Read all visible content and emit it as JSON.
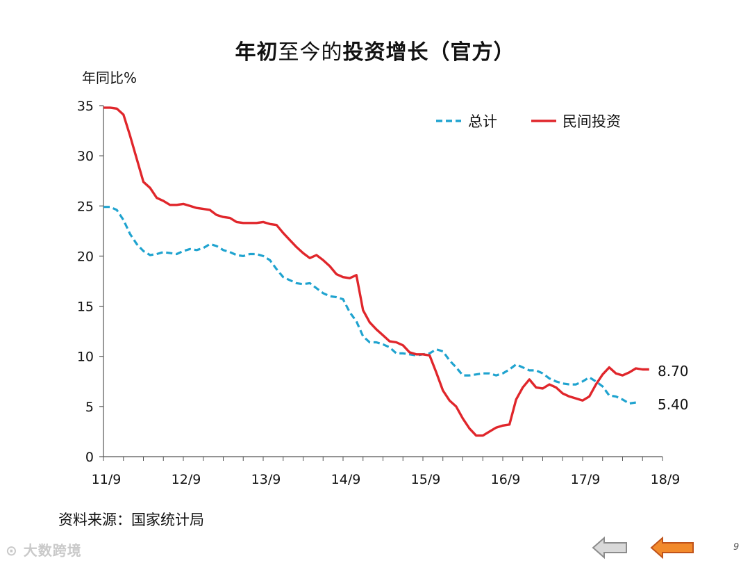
{
  "header": {
    "title_bold_1": "年初",
    "title_light": "至今",
    "title_light_2": "的",
    "title_bold_2": "投资增长（官方）"
  },
  "axis_unit": "年同比%",
  "source": "资料来源：国家统计局",
  "watermark": "大数跨境",
  "page_number": "9",
  "colors": {
    "total": "#1fa3cf",
    "private": "#e0262b",
    "axis": "#555555"
  },
  "icons": {
    "prev": "left-arrow-gray",
    "next": "left-arrow-orange"
  },
  "chart_data": {
    "type": "line",
    "ylim": [
      0,
      35
    ],
    "yticks": [
      0,
      5,
      10,
      15,
      20,
      25,
      30,
      35
    ],
    "x_tick_labels": [
      "11/9",
      "12/9",
      "13/9",
      "14/9",
      "15/9",
      "16/9",
      "17/9",
      "18/9"
    ],
    "x_range_months": [
      0,
      84
    ],
    "legend_position": "top-right",
    "series": [
      {
        "name": "总计",
        "style": "dashed",
        "end_label": "5.40",
        "points": [
          [
            0,
            24.9
          ],
          [
            1,
            24.9
          ],
          [
            2,
            24.6
          ],
          [
            3,
            23.6
          ],
          [
            4,
            22.2
          ],
          [
            5,
            21.2
          ],
          [
            6,
            20.5
          ],
          [
            7,
            20.1
          ],
          [
            8,
            20.2
          ],
          [
            9,
            20.4
          ],
          [
            10,
            20.3
          ],
          [
            11,
            20.2
          ],
          [
            12,
            20.5
          ],
          [
            13,
            20.7
          ],
          [
            14,
            20.6
          ],
          [
            15,
            20.8
          ],
          [
            16,
            21.2
          ],
          [
            17,
            21.0
          ],
          [
            18,
            20.6
          ],
          [
            19,
            20.4
          ],
          [
            20,
            20.1
          ],
          [
            21,
            20.0
          ],
          [
            22,
            20.2
          ],
          [
            23,
            20.2
          ],
          [
            24,
            20.0
          ],
          [
            25,
            19.6
          ],
          [
            26,
            18.7
          ],
          [
            27,
            17.9
          ],
          [
            28,
            17.6
          ],
          [
            29,
            17.3
          ],
          [
            30,
            17.2
          ],
          [
            31,
            17.3
          ],
          [
            32,
            16.8
          ],
          [
            33,
            16.3
          ],
          [
            34,
            16.0
          ],
          [
            35,
            15.9
          ],
          [
            36,
            15.7
          ],
          [
            37,
            14.4
          ],
          [
            38,
            13.5
          ],
          [
            39,
            12.0
          ],
          [
            40,
            11.4
          ],
          [
            41,
            11.4
          ],
          [
            42,
            11.2
          ],
          [
            43,
            10.9
          ],
          [
            44,
            10.3
          ],
          [
            45,
            10.3
          ],
          [
            46,
            10.2
          ],
          [
            47,
            10.1
          ],
          [
            48,
            10.2
          ],
          [
            49,
            10.3
          ],
          [
            50,
            10.7
          ],
          [
            51,
            10.5
          ],
          [
            52,
            9.6
          ],
          [
            53,
            8.9
          ],
          [
            54,
            8.1
          ],
          [
            55,
            8.1
          ],
          [
            56,
            8.2
          ],
          [
            57,
            8.3
          ],
          [
            58,
            8.3
          ],
          [
            59,
            8.1
          ],
          [
            60,
            8.3
          ],
          [
            61,
            8.7
          ],
          [
            62,
            9.2
          ],
          [
            63,
            8.9
          ],
          [
            64,
            8.6
          ],
          [
            65,
            8.6
          ],
          [
            66,
            8.3
          ],
          [
            67,
            7.8
          ],
          [
            68,
            7.5
          ],
          [
            69,
            7.3
          ],
          [
            70,
            7.2
          ],
          [
            71,
            7.2
          ],
          [
            72,
            7.5
          ],
          [
            73,
            7.9
          ],
          [
            74,
            7.5
          ],
          [
            75,
            7.0
          ],
          [
            76,
            6.1
          ],
          [
            77,
            6.0
          ],
          [
            78,
            5.7
          ],
          [
            79,
            5.3
          ],
          [
            80,
            5.4
          ]
        ]
      },
      {
        "name": "民间投资",
        "style": "solid",
        "end_label": "8.70",
        "points": [
          [
            0,
            34.8
          ],
          [
            1,
            34.8
          ],
          [
            2,
            34.7
          ],
          [
            3,
            34.1
          ],
          [
            4,
            32.0
          ],
          [
            5,
            29.7
          ],
          [
            6,
            27.4
          ],
          [
            7,
            26.8
          ],
          [
            8,
            25.8
          ],
          [
            9,
            25.5
          ],
          [
            10,
            25.1
          ],
          [
            11,
            25.1
          ],
          [
            12,
            25.2
          ],
          [
            13,
            25.0
          ],
          [
            14,
            24.8
          ],
          [
            15,
            24.7
          ],
          [
            16,
            24.6
          ],
          [
            17,
            24.1
          ],
          [
            18,
            23.9
          ],
          [
            19,
            23.8
          ],
          [
            20,
            23.4
          ],
          [
            21,
            23.3
          ],
          [
            22,
            23.3
          ],
          [
            23,
            23.3
          ],
          [
            24,
            23.4
          ],
          [
            25,
            23.2
          ],
          [
            26,
            23.1
          ],
          [
            27,
            22.3
          ],
          [
            28,
            21.6
          ],
          [
            29,
            20.9
          ],
          [
            30,
            20.3
          ],
          [
            31,
            19.8
          ],
          [
            32,
            20.1
          ],
          [
            33,
            19.6
          ],
          [
            34,
            19.0
          ],
          [
            35,
            18.2
          ],
          [
            36,
            17.9
          ],
          [
            37,
            17.8
          ],
          [
            38,
            18.1
          ],
          [
            39,
            14.6
          ],
          [
            40,
            13.4
          ],
          [
            41,
            12.7
          ],
          [
            42,
            12.1
          ],
          [
            43,
            11.5
          ],
          [
            44,
            11.4
          ],
          [
            45,
            11.1
          ],
          [
            46,
            10.4
          ],
          [
            47,
            10.2
          ],
          [
            48,
            10.2
          ],
          [
            49,
            10.1
          ],
          [
            50,
            8.4
          ],
          [
            51,
            6.6
          ],
          [
            52,
            5.6
          ],
          [
            53,
            5.0
          ],
          [
            54,
            3.8
          ],
          [
            55,
            2.8
          ],
          [
            56,
            2.1
          ],
          [
            57,
            2.1
          ],
          [
            58,
            2.5
          ],
          [
            59,
            2.9
          ],
          [
            60,
            3.1
          ],
          [
            61,
            3.2
          ],
          [
            62,
            5.7
          ],
          [
            63,
            6.9
          ],
          [
            64,
            7.7
          ],
          [
            65,
            6.9
          ],
          [
            66,
            6.8
          ],
          [
            67,
            7.2
          ],
          [
            68,
            6.9
          ],
          [
            69,
            6.3
          ],
          [
            70,
            6.0
          ],
          [
            71,
            5.8
          ],
          [
            72,
            5.6
          ],
          [
            73,
            6.0
          ],
          [
            74,
            7.2
          ],
          [
            75,
            8.2
          ],
          [
            76,
            8.9
          ],
          [
            77,
            8.3
          ],
          [
            78,
            8.1
          ],
          [
            79,
            8.4
          ],
          [
            80,
            8.8
          ],
          [
            81,
            8.7
          ],
          [
            82,
            8.7
          ]
        ]
      }
    ]
  }
}
